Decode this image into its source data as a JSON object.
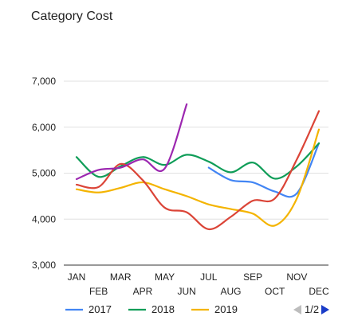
{
  "chart_data": {
    "type": "line",
    "title": "Category Cost",
    "categories": [
      "JAN",
      "FEB",
      "MAR",
      "APR",
      "MAY",
      "JUN",
      "JUL",
      "AUG",
      "SEP",
      "OCT",
      "NOV",
      "DEC"
    ],
    "yticks": [
      "3,000",
      "4,000",
      "5,000",
      "6,000",
      "7,000"
    ],
    "ylim": [
      3000,
      7000
    ],
    "grid": true,
    "legend_position": "bottom",
    "pagination": "1/2",
    "series": [
      {
        "name": "2017",
        "color": "#4285f4",
        "values": [
          null,
          null,
          null,
          null,
          null,
          null,
          5120,
          4850,
          4800,
          4600,
          4560,
          5650
        ]
      },
      {
        "name": "2018",
        "color": "#0f9d58",
        "values": [
          5350,
          4920,
          5150,
          5350,
          5180,
          5400,
          5250,
          5020,
          5230,
          4880,
          5150,
          5650
        ]
      },
      {
        "name": "2019",
        "color": "#f4b400",
        "values": [
          4650,
          4580,
          4680,
          4800,
          4650,
          4500,
          4320,
          4220,
          4120,
          3860,
          4450,
          5950
        ]
      },
      {
        "name": "",
        "color": "#db4437",
        "values": [
          4750,
          4700,
          5200,
          4850,
          4250,
          4150,
          3780,
          4050,
          4400,
          4450,
          5300,
          6350
        ]
      },
      {
        "name": "",
        "color": "#9c27b0",
        "values": [
          4870,
          5070,
          5120,
          5300,
          5100,
          6500,
          null,
          null,
          null,
          null,
          null,
          null
        ]
      }
    ]
  }
}
